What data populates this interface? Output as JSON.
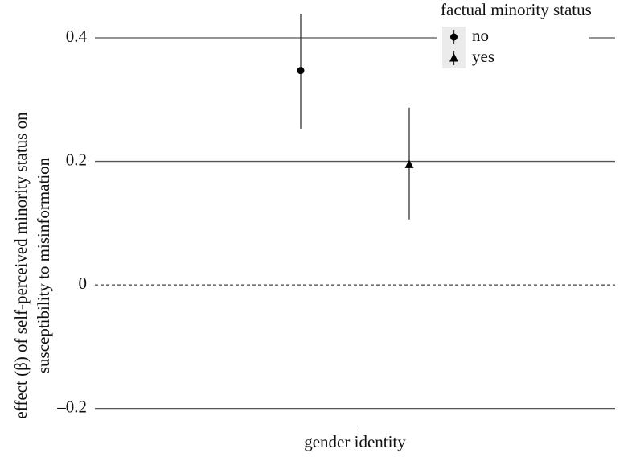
{
  "chart_data": {
    "type": "pointrange",
    "y_label": [
      "effect (β) of self-perceived minority status on",
      "susceptibility to misinformation"
    ],
    "categories": [
      "gender identity"
    ],
    "legend_title": "factual minority status",
    "series": [
      {
        "name": "no",
        "marker": "circle",
        "color": "#000000",
        "values": [
          0.347
        ],
        "lower": [
          0.253
        ],
        "upper": [
          0.439
        ]
      },
      {
        "name": "yes",
        "marker": "triangle",
        "color": "#000000",
        "values": [
          0.195
        ],
        "lower": [
          0.106
        ],
        "upper": [
          0.287
        ]
      }
    ],
    "ylim": [
      -0.22,
      0.45
    ],
    "yticks": [
      {
        "value": -0.2,
        "label": "–0.2"
      },
      0,
      0.2,
      0.4
    ],
    "reference_line": 0,
    "grid": true
  }
}
